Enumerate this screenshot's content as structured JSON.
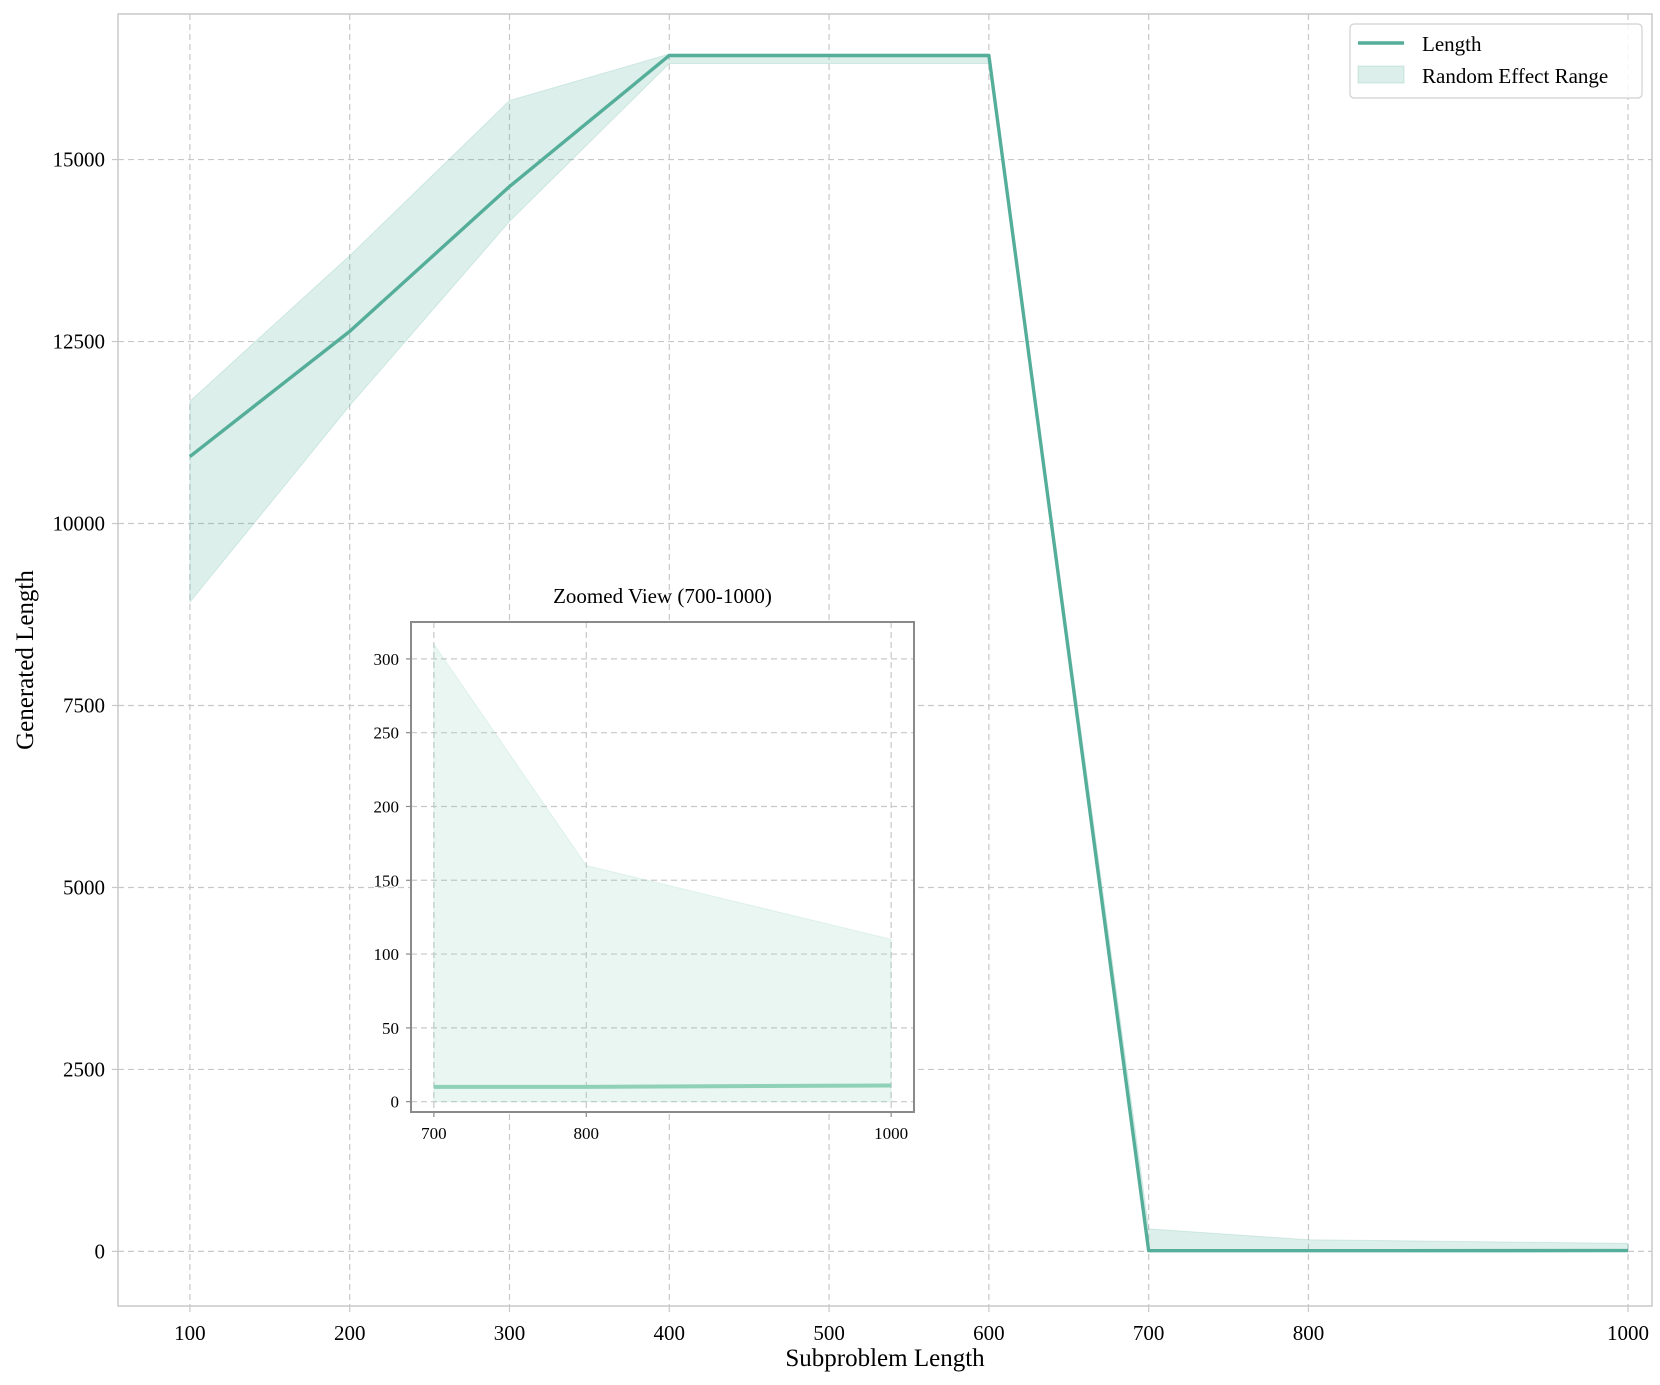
{
  "chart_data": [
    {
      "type": "area",
      "title": "",
      "xlabel": "Subproblem Length",
      "ylabel": "Generated Length",
      "x": [
        100,
        200,
        300,
        400,
        600,
        700,
        800,
        1000
      ],
      "xticks": [
        100,
        200,
        300,
        400,
        500,
        600,
        700,
        800,
        1000
      ],
      "xlim": [
        55,
        1015
      ],
      "ylim": [
        -750,
        17000
      ],
      "yticks": [
        0,
        2500,
        5000,
        7500,
        10000,
        12500,
        15000
      ],
      "grid": true,
      "legend_position": "top-right",
      "series": [
        {
          "name": "Length",
          "type": "line",
          "color": "#55ae99",
          "values": [
            10920,
            12640,
            14630,
            16430,
            16430,
            10,
            10,
            11
          ]
        },
        {
          "name": "Random Effect Range",
          "type": "band",
          "color": "#55ae99",
          "lower": [
            8920,
            11620,
            14150,
            16320,
            16320,
            0,
            0,
            0
          ],
          "upper": [
            11680,
            13680,
            15810,
            16450,
            16450,
            310,
            160,
            110
          ]
        }
      ]
    },
    {
      "type": "area",
      "title": "Zoomed View (700-1000)",
      "xlabel": "",
      "ylabel": "",
      "x": [
        700,
        800,
        1000
      ],
      "xticks": [
        700,
        800,
        1000
      ],
      "xlim": [
        685,
        1015
      ],
      "ylim": [
        -7,
        325
      ],
      "yticks": [
        0,
        50,
        100,
        150,
        200,
        250,
        300
      ],
      "grid": true,
      "series": [
        {
          "type": "line",
          "color": "#8fd0b8",
          "values": [
            10,
            10,
            11
          ]
        },
        {
          "type": "band",
          "color": "#8fd0b8",
          "lower": [
            0,
            0,
            0
          ],
          "upper": [
            310,
            160,
            110
          ]
        }
      ]
    }
  ]
}
